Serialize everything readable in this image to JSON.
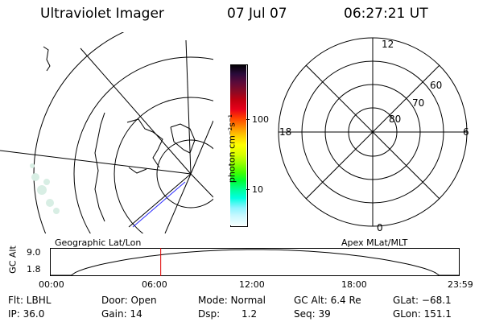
{
  "header": {
    "instrument": "Ultraviolet Imager",
    "date": "07 Jul 07",
    "time": "06:27:21 UT"
  },
  "colorbar": {
    "unit_label": "photon cm⁻²s⁻¹",
    "ticks": [
      "100",
      "10"
    ],
    "colors": [
      "#000000",
      "#2a0a3a",
      "#5a0a3a",
      "#8b0a24",
      "#c00010",
      "#e8001a",
      "#ff3c00",
      "#ff8c00",
      "#ffc800",
      "#ffff00",
      "#d8ff00",
      "#9cff00",
      "#44ff00",
      "#00ff30",
      "#00ff9c",
      "#00ffe0",
      "#8cf4ff",
      "#c8f8ff",
      "#f4ffff"
    ]
  },
  "polar_plot": {
    "mlt_labels": {
      "top": "12",
      "bottom": "0",
      "left": "18",
      "right": "6"
    },
    "lat_labels": [
      "60",
      "70",
      "80"
    ]
  },
  "geo_label": "Geographic Lat/Lon",
  "apex_label": "Apex MLat/MLT",
  "altitude_panel": {
    "axis_label": "GC Alt",
    "ticks": [
      "9.0",
      "1.8"
    ],
    "time_ticks": [
      "00:00",
      "06:00",
      "12:00",
      "18:00",
      "23:59"
    ],
    "current_time_hours": 6.456
  },
  "info": {
    "filter": "Flt: LBHL",
    "door": "Door: Open",
    "mode": "Mode: Normal",
    "gc_alt": "GC Alt: 6.4 Re",
    "glat": "GLat: −68.1",
    "ip": "IP: 36.0",
    "gain": "Gain: 14",
    "dsp_label": "Dsp:",
    "dsp_value": "1.2",
    "seq": "Seq: 39",
    "glon": "GLon: 151.1"
  }
}
